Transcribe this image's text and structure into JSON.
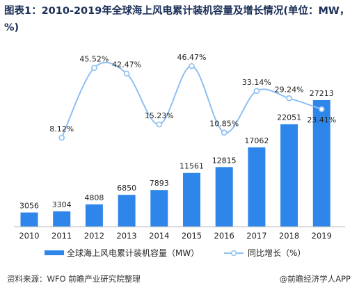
{
  "title": "图表1：2010-2019年全球海上风电累计装机容量及增长情况(单位：MW，%)",
  "footer": {
    "source": "资料来源：WFO 前瞻产业研究院整理",
    "brand": "@前瞻经济学人APP"
  },
  "colors": {
    "bar": "#2f86ea",
    "line": "#8ebff2",
    "title": "#1b2f57"
  },
  "chart_data": {
    "type": "bar",
    "categories": [
      "2010",
      "2011",
      "2012",
      "2013",
      "2014",
      "2015",
      "2016",
      "2017",
      "2018",
      "2019"
    ],
    "series": [
      {
        "name": "全球海上风电累计装机容量（MW）",
        "type": "bar",
        "values": [
          3056,
          3304,
          4808,
          6850,
          7893,
          11561,
          12815,
          17062,
          22051,
          27213
        ],
        "labels": [
          "3056",
          "3304",
          "4808",
          "6850",
          "7893",
          "11561",
          "12815",
          "17062",
          "22051",
          "27213"
        ]
      },
      {
        "name": "同比增长（%）",
        "type": "line",
        "values": [
          null,
          8.12,
          45.52,
          42.47,
          15.23,
          46.47,
          10.85,
          33.14,
          29.24,
          23.41
        ],
        "labels": [
          "",
          "8.12%",
          "45.52%",
          "42.47%",
          "15.23%",
          "46.47%",
          "10.85%",
          "33.14%",
          "29.24%",
          "23.41%"
        ]
      }
    ],
    "legend_position": "bottom",
    "grid": false
  }
}
